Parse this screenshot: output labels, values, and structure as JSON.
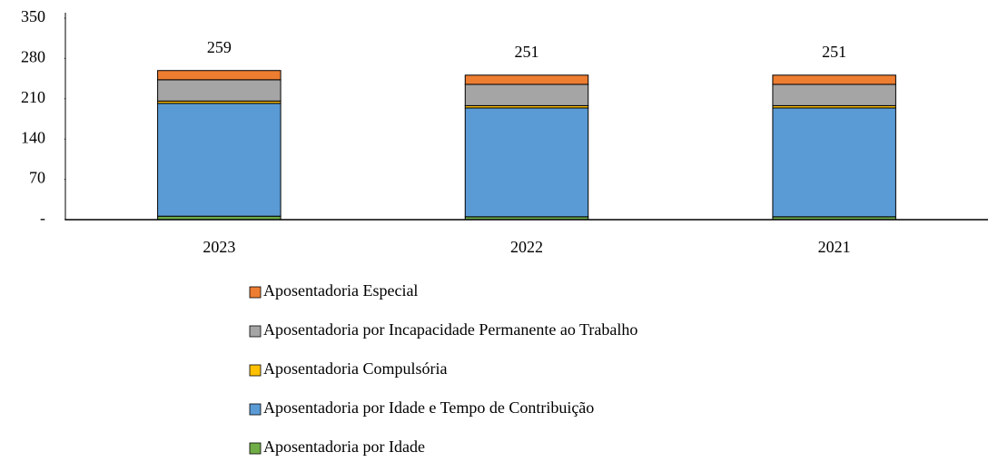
{
  "chart_data": {
    "type": "stacked_bar",
    "categories": [
      "2023",
      "2022",
      "2021"
    ],
    "series": [
      {
        "name": "Aposentadoria por Idade",
        "color": "#70ad47",
        "values": [
          6,
          5,
          5
        ]
      },
      {
        "name": "Aposentadoria por Idade e Tempo de Contribuição",
        "color": "#5b9bd5",
        "values": [
          196,
          189,
          189
        ]
      },
      {
        "name": "Aposentadoria Compulsória",
        "color": "#ffc000",
        "values": [
          4,
          4,
          4
        ]
      },
      {
        "name": "Aposentadoria por Incapacidade Permanente ao Trabalho",
        "color": "#a5a5a5",
        "values": [
          37,
          37,
          37
        ]
      },
      {
        "name": "Aposentadoria Especial",
        "color": "#ed7d31",
        "values": [
          16,
          16,
          16
        ]
      }
    ],
    "totals": [
      259,
      251,
      251
    ],
    "ylim": [
      0,
      350
    ],
    "yticks": [
      {
        "value": 0,
        "label": "-"
      },
      70,
      140,
      210,
      280,
      350
    ]
  }
}
